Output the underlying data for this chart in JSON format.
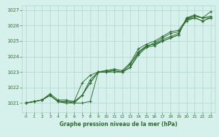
{
  "xlabel": "Graphe pression niveau de la mer (hPa)",
  "x_ticks": [
    0,
    1,
    2,
    3,
    4,
    5,
    6,
    7,
    8,
    9,
    10,
    11,
    12,
    13,
    14,
    15,
    16,
    17,
    18,
    19,
    20,
    21,
    22,
    23
  ],
  "ylim": [
    1020.4,
    1027.3
  ],
  "yticks": [
    1021,
    1022,
    1023,
    1024,
    1025,
    1026,
    1027
  ],
  "background_color": "#d6f0eb",
  "grid_color": "#aed4ce",
  "line_color": "#2d6a2d",
  "series": [
    [
      1021.0,
      1021.1,
      1021.2,
      1021.5,
      1021.1,
      1021.0,
      1021.0,
      1021.0,
      1021.1,
      1023.0,
      1023.0,
      1023.0,
      1023.0,
      1023.3,
      1024.1,
      1024.6,
      1024.7,
      1025.0,
      1025.2,
      1025.4,
      1026.5,
      1026.6,
      1026.5,
      1026.5
    ],
    [
      1021.0,
      1021.1,
      1021.2,
      1021.5,
      1021.1,
      1021.0,
      1021.0,
      1021.5,
      1022.3,
      1023.0,
      1023.0,
      1023.1,
      1023.0,
      1023.5,
      1024.3,
      1024.7,
      1024.8,
      1025.1,
      1025.3,
      1025.5,
      1026.4,
      1026.5,
      1026.3,
      1026.5
    ],
    [
      1021.0,
      1021.1,
      1021.2,
      1021.5,
      1021.1,
      1021.1,
      1021.0,
      1021.5,
      1022.3,
      1023.0,
      1023.0,
      1023.1,
      1023.0,
      1023.5,
      1024.3,
      1024.6,
      1024.9,
      1025.2,
      1025.5,
      1025.6,
      1026.3,
      1026.5,
      1026.3,
      1026.5
    ],
    [
      1021.0,
      1021.1,
      1021.2,
      1021.6,
      1021.2,
      1021.2,
      1021.1,
      1021.5,
      1022.5,
      1023.0,
      1023.1,
      1023.2,
      1023.1,
      1023.6,
      1024.5,
      1024.8,
      1025.0,
      1025.3,
      1025.6,
      1025.7,
      1026.4,
      1026.6,
      1026.5,
      1026.6
    ],
    [
      1021.0,
      1021.1,
      1021.2,
      1021.5,
      1021.1,
      1021.1,
      1021.1,
      1022.3,
      1022.8,
      1023.0,
      1023.1,
      1023.1,
      1023.0,
      1023.3,
      1024.2,
      1024.7,
      1024.8,
      1025.0,
      1025.2,
      1025.4,
      1026.5,
      1026.7,
      1026.5,
      1026.9
    ]
  ]
}
